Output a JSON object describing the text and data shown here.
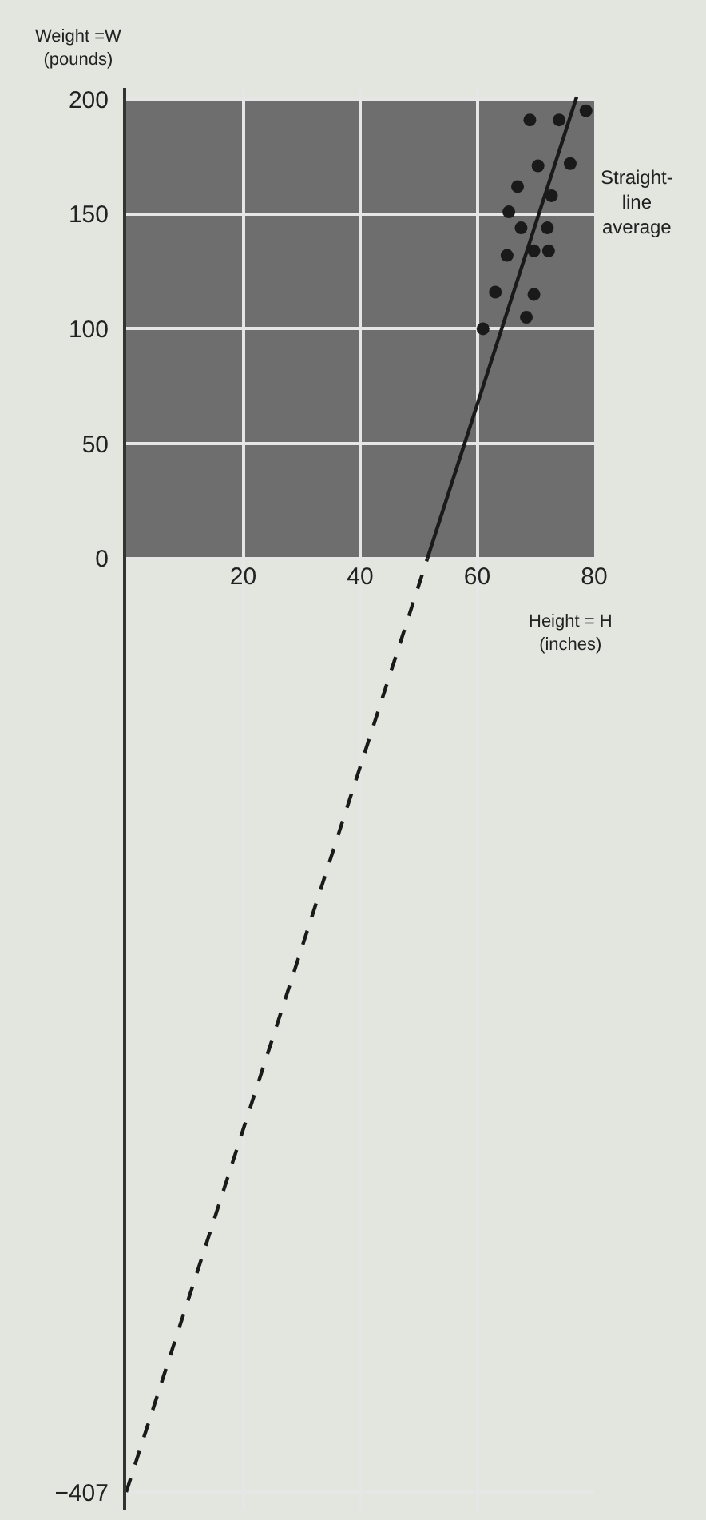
{
  "chart_data": {
    "type": "scatter",
    "ylabel": "Weight =W\n(pounds)",
    "xlabel": "Height = H\n(inches)",
    "annotations": [
      {
        "text": "Straight-\nline\naverage",
        "x": 80,
        "y": 155
      }
    ],
    "xlim": [
      0,
      80
    ],
    "xticks": [
      20,
      40,
      60,
      80
    ],
    "ylim": [
      -415,
      205
    ],
    "yticks": [
      {
        "value": -407,
        "label": "−407"
      },
      0,
      50,
      100,
      150,
      200
    ],
    "grid": true,
    "tick_labels": "xy",
    "bands": [
      {
        "axis": "y",
        "from": 0,
        "to": 200,
        "color": "#6e6e6e"
      }
    ],
    "series": [
      {
        "color": "#1a1a1a",
        "marker": "circle",
        "x": [
          69,
          74,
          78.6,
          70.4,
          75.9,
          66.9,
          72.7,
          65.4,
          67.5,
          72,
          65.1,
          69.7,
          72.2,
          63.1,
          69.7,
          68.4,
          61
        ],
        "values": [
          191,
          191,
          195,
          171,
          172,
          162,
          158,
          151,
          144,
          144,
          132,
          134,
          134,
          116,
          115,
          105,
          100
        ]
      },
      {
        "type": "line",
        "color": "#1a1a1a",
        "marker": "none",
        "line_style": "solid",
        "x": [
          51.5,
          77
        ],
        "values": [
          0,
          201
        ]
      },
      {
        "type": "line",
        "color": "#1a1a1a",
        "marker": "none",
        "line_style": "dashed",
        "x": [
          0,
          51.5
        ],
        "values": [
          -407,
          0
        ]
      }
    ]
  }
}
